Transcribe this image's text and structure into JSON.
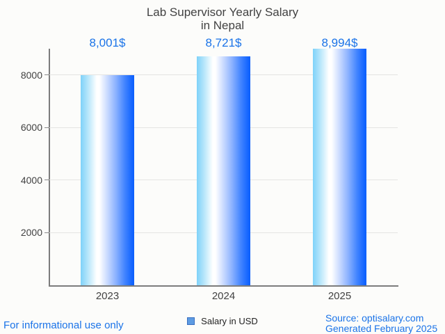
{
  "title": {
    "line1": "Lab Supervisor Yearly Salary",
    "line2": "in Nepal"
  },
  "legend": {
    "label": "Salary in USD",
    "swatch_fill": "#5d9be2",
    "swatch_border": "#3a6fc0"
  },
  "footer": {
    "disclaimer": "For informational use only",
    "source_line1": "Source: optisalary.com",
    "source_line2": "Generated February 2025"
  },
  "colors": {
    "accent_blue": "#1a73e8",
    "text_gray": "#424242",
    "axis_gray": "#7c7c7c",
    "gridline_gray": "#e4e4e2",
    "background": "#fcfcfa",
    "bar_gradient_stops": [
      "#7ed2f9 0%",
      "#bce8fb 15%",
      "#ffffff 30%",
      "#ffffff 35%",
      "#c9daff 50%",
      "#8fb4ff 65%",
      "#4083ff 83%",
      "#1063ff 97%",
      "#0d5ffa 100%"
    ]
  },
  "chart_data": {
    "type": "bar",
    "title": "Lab Supervisor Yearly Salary in Nepal",
    "categories": [
      "2023",
      "2024",
      "2025"
    ],
    "series": [
      {
        "name": "Salary in USD",
        "values": [
          8001,
          8721,
          8994
        ]
      }
    ],
    "value_labels": [
      "8,001$",
      "8,721$",
      "8,994$"
    ],
    "xlabel": "",
    "ylabel": "",
    "ylim": [
      0,
      9000
    ],
    "yticks": [
      2000,
      4000,
      6000,
      8000
    ],
    "grid": "horizontal",
    "legend_position": "bottom"
  }
}
